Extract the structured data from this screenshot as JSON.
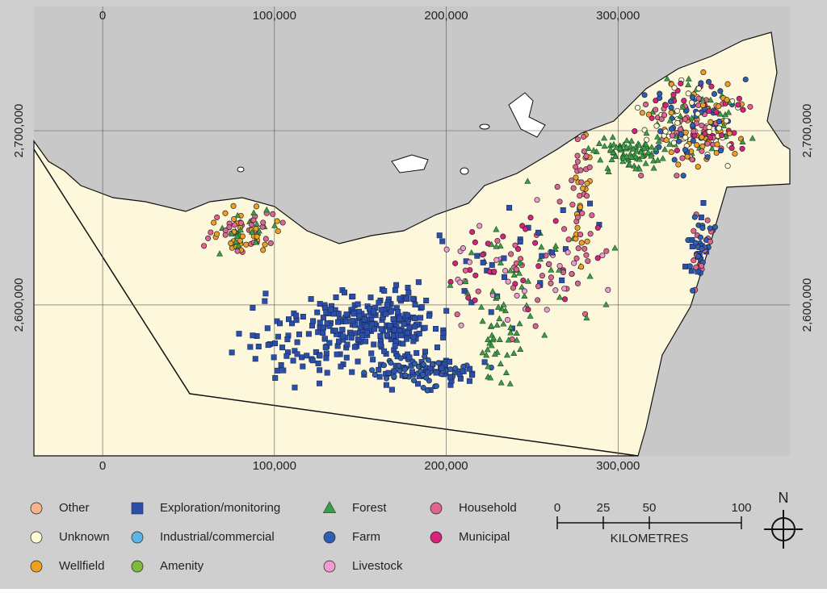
{
  "map": {
    "xlim": [
      -40000,
      400000
    ],
    "ylim": [
      2513400,
      2771300
    ],
    "xticks": [
      0,
      {
        "value": 100000,
        "label": "100,000"
      },
      {
        "value": 200000,
        "label": "200,000"
      },
      {
        "value": 300000,
        "label": "300,000"
      }
    ],
    "yticks": [
      {
        "value": 2600000,
        "label": "2,600,000"
      },
      {
        "value": 2700000,
        "label": "2,700,000"
      }
    ],
    "grid": true,
    "legend": [
      {
        "name": "Other",
        "shape": "circle",
        "color": "#f3b48f"
      },
      {
        "name": "Unknown",
        "shape": "circle",
        "color": "#fdfbd6"
      },
      {
        "name": "Wellfield",
        "shape": "circle",
        "color": "#f0a021"
      },
      {
        "name": "Exploration/monitoring",
        "shape": "square",
        "color": "#2b4fa8"
      },
      {
        "name": "Industrial/commercial",
        "shape": "circle",
        "color": "#5bb4e5"
      },
      {
        "name": "Amenity",
        "shape": "circle",
        "color": "#7dbb3c"
      },
      {
        "name": "Forest",
        "shape": "triangle",
        "color": "#3c9c4a"
      },
      {
        "name": "Farm",
        "shape": "circle",
        "color": "#2d5fb5"
      },
      {
        "name": "Livestock",
        "shape": "circle",
        "color": "#ef9ad0"
      },
      {
        "name": "Household",
        "shape": "circle",
        "color": "#e06490"
      },
      {
        "name": "Municipal",
        "shape": "circle",
        "color": "#d8237a"
      }
    ],
    "scale_bar": {
      "ticks": [
        0,
        25,
        50,
        100
      ],
      "unit": "KILOMETRES"
    },
    "north": "N"
  }
}
